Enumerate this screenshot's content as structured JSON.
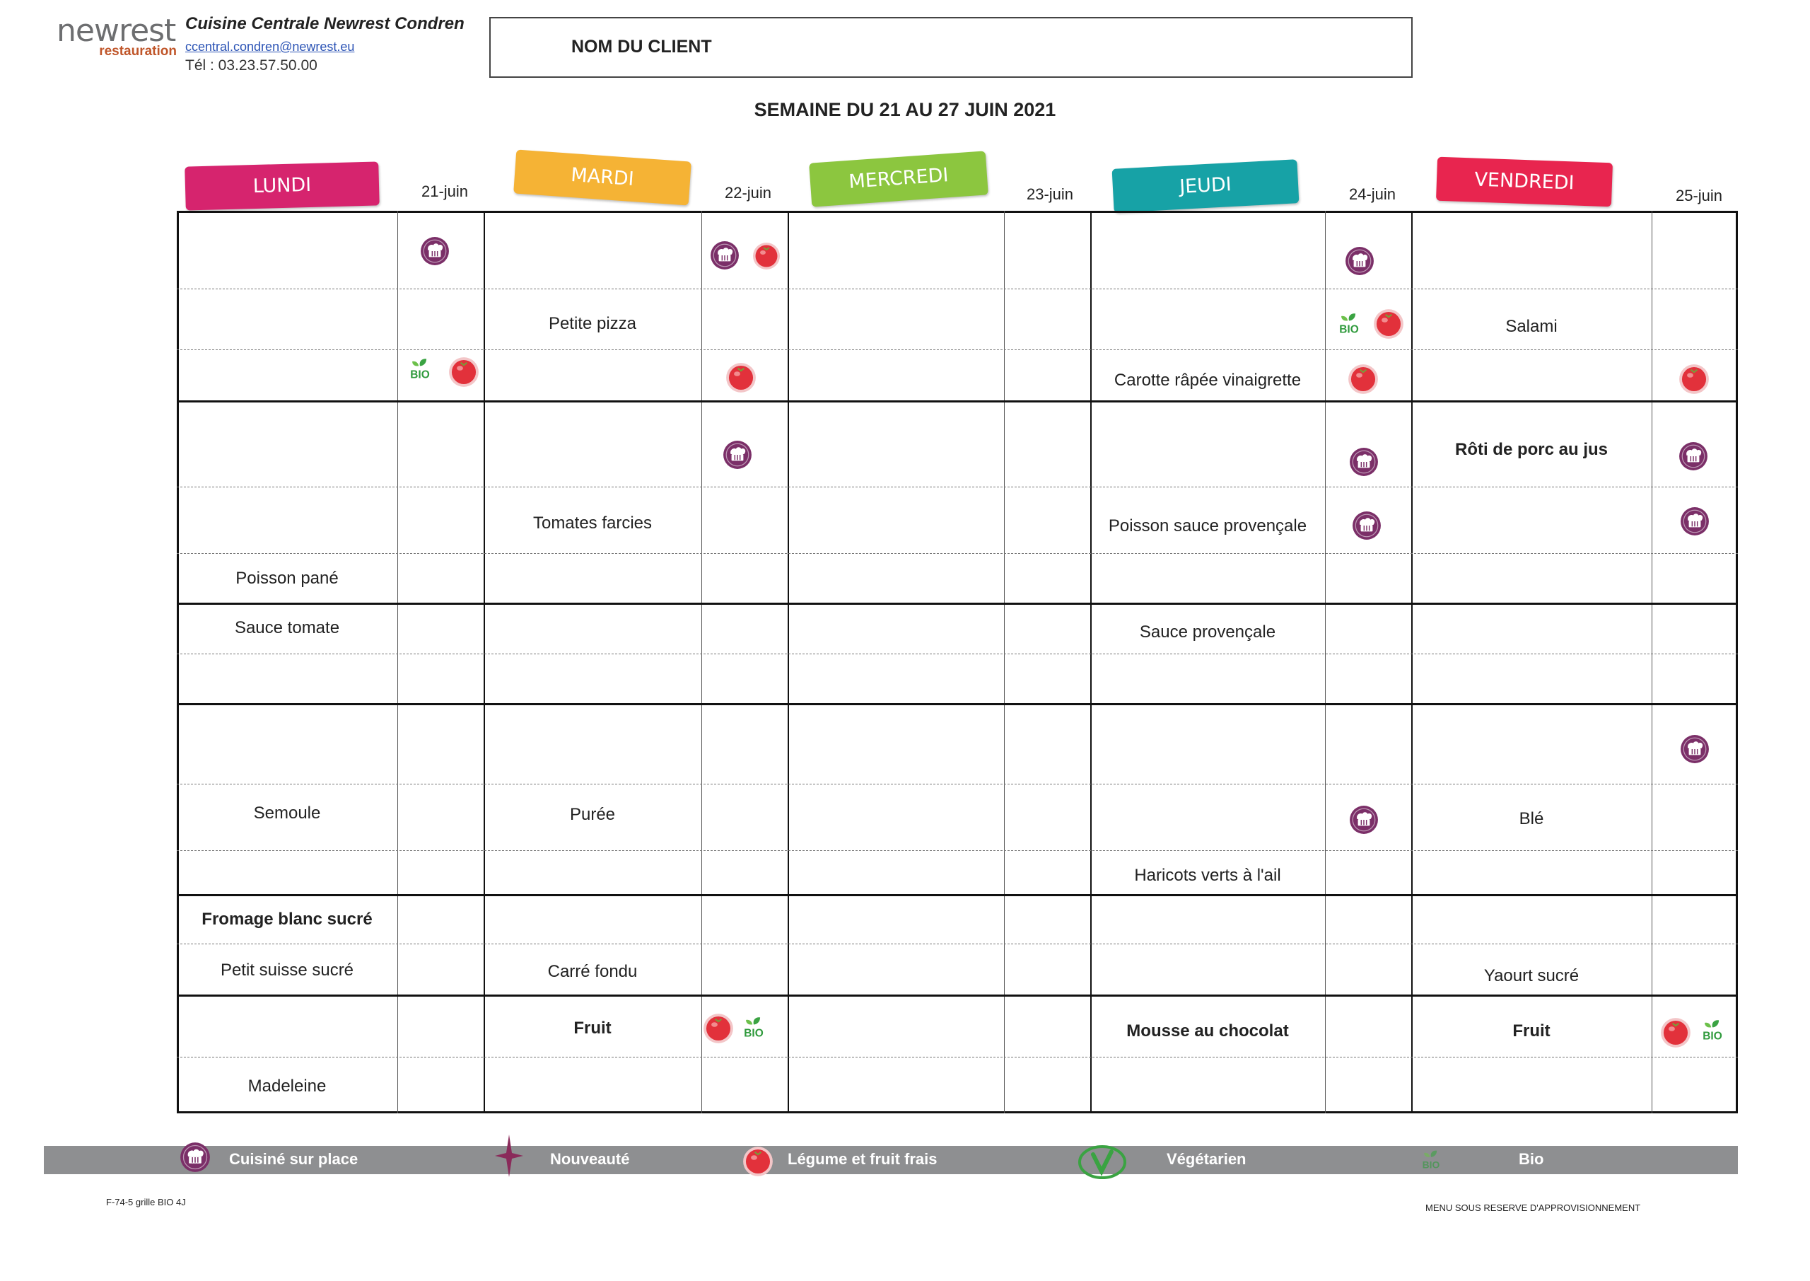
{
  "header": {
    "logo_top": "newrest",
    "logo_bottom": "restauration",
    "company_name": "Cuisine Centrale Newrest Condren",
    "email": "ccentral.condren@newrest.eu",
    "phone": "Tél : 03.23.57.50.00",
    "client_label": "NOM DU CLIENT",
    "week_title": "SEMAINE DU 21 AU 27 JUIN 2021"
  },
  "days": [
    {
      "label": "LUNDI",
      "date": "21-juin",
      "color": "#d6246e"
    },
    {
      "label": "MARDI",
      "date": "22-juin",
      "color": "#f5b335"
    },
    {
      "label": "MERCREDI",
      "date": "23-juin",
      "color": "#8cc63f"
    },
    {
      "label": "JEUDI",
      "date": "24-juin",
      "color": "#17a2a6"
    },
    {
      "label": "VENDREDI",
      "date": "25-juin",
      "color": "#e8254f"
    }
  ],
  "menu": {
    "lundi": [
      "Poisson pané",
      "Sauce tomate",
      "Semoule",
      "Fromage blanc sucré",
      "Petit suisse sucré",
      "Madeleine"
    ],
    "mardi": [
      "Petite pizza",
      "Tomates farcies",
      "Purée",
      "Carré fondu",
      "Fruit"
    ],
    "jeudi": [
      "Carotte râpée vinaigrette",
      "Poisson sauce provençale",
      "Sauce provençale",
      "Haricots verts à l'ail",
      "Mousse au chocolat"
    ],
    "vendredi": [
      "Salami",
      "Rôti de porc au jus",
      "Blé",
      "Yaourt sucré",
      "Fruit"
    ]
  },
  "bio_label": "BIO",
  "legend": [
    {
      "label": "Cuisiné sur place",
      "icon": "chef-hat-icon"
    },
    {
      "label": "Nouveauté",
      "icon": "star-icon"
    },
    {
      "label": "Légume et fruit frais",
      "icon": "tomato-icon"
    },
    {
      "label": "Végétarien",
      "icon": "vegetarian-icon"
    },
    {
      "label": "Bio",
      "icon": "bio-leaf-icon"
    }
  ],
  "footer": {
    "reference": "F-74-5 grille BIO 4J",
    "reserve": "MENU SOUS RESERVE D'APPROVISIONNEMENT"
  }
}
